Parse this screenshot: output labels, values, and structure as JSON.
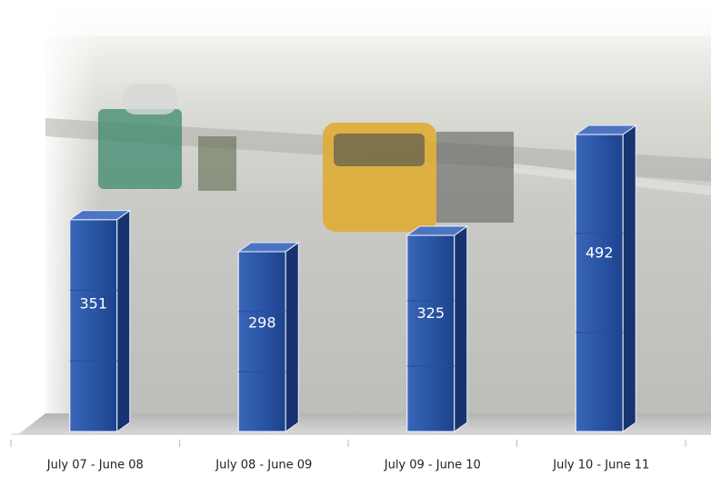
{
  "chart_data": {
    "type": "bar3d",
    "categories": [
      "July 07 - June 08",
      "July 08 - June 09",
      "July 09 - June 10",
      "July 10 - June 11"
    ],
    "values": [
      351,
      298,
      325,
      492
    ],
    "color": "#2a55a6"
  }
}
